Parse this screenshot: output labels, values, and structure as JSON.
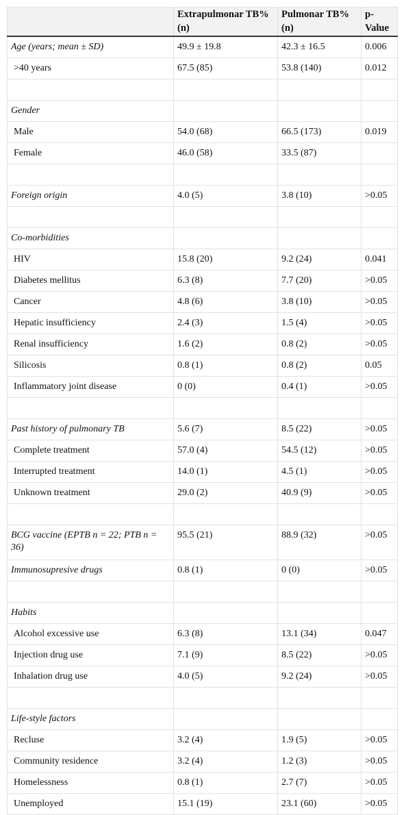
{
  "table": {
    "header": [
      "",
      "Extrapulmonar TB% (n)",
      "Pulmonar TB% (n)",
      "p-Value"
    ],
    "groups": [
      [
        {
          "label": "Age (years; mean ± SD)",
          "italic": true,
          "values": [
            "49.9 ± 19.8",
            "42.3 ± 16.5",
            "0.006"
          ]
        },
        {
          "label": ">40 years",
          "values": [
            "67.5 (85)",
            "53.8 (140)",
            "0.012"
          ]
        }
      ],
      [
        {
          "label": "Gender",
          "italic": true
        },
        {
          "label": "Male",
          "values": [
            "54.0 (68)",
            "66.5 (173)",
            "0.019"
          ]
        },
        {
          "label": "Female",
          "values": [
            "46.0 (58)",
            "33.5 (87)",
            null
          ]
        }
      ],
      [
        {
          "label": "Foreign origin",
          "italic": true,
          "values": [
            "4.0 (5)",
            "3.8 (10)",
            ">0.05"
          ]
        }
      ],
      [
        {
          "label": "Co-morbidities",
          "italic": true
        },
        {
          "label": "HIV",
          "values": [
            "15.8 (20)",
            "9.2 (24)",
            "0.041"
          ]
        },
        {
          "label": "Diabetes mellitus",
          "values": [
            "6.3 (8)",
            "7.7 (20)",
            ">0.05"
          ]
        },
        {
          "label": "Cancer",
          "values": [
            "4.8 (6)",
            "3.8 (10)",
            ">0.05"
          ]
        },
        {
          "label": "Hepatic insufficiency",
          "values": [
            "2.4 (3)",
            "1.5 (4)",
            ">0.05"
          ]
        },
        {
          "label": "Renal insufficiency",
          "values": [
            "1.6 (2)",
            "0.8 (2)",
            ">0.05"
          ]
        },
        {
          "label": "Silicosis",
          "values": [
            "0.8 (1)",
            "0.8 (2)",
            "0.05"
          ]
        },
        {
          "label": "Inflammatory joint disease",
          "values": [
            "0 (0)",
            "0.4 (1)",
            ">0.05"
          ]
        }
      ],
      [
        {
          "label": "Past history of pulmonary TB",
          "italic": true,
          "values": [
            "5.6 (7)",
            "8.5 (22)",
            ">0.05"
          ]
        },
        {
          "label": "Complete treatment",
          "values": [
            "57.0 (4)",
            "54.5 (12)",
            ">0.05"
          ]
        },
        {
          "label": "Interrupted treatment",
          "values": [
            "14.0 (1)",
            "4.5 (1)",
            ">0.05"
          ]
        },
        {
          "label": "Unknown treatment",
          "values": [
            "29.0 (2)",
            "40.9 (9)",
            ">0.05"
          ]
        }
      ],
      [
        {
          "label": "BCG vaccine (EPTB n = 22; PTB n = 36)",
          "italic": true,
          "values": [
            "95.5 (21)",
            "88.9 (32)",
            ">0.05"
          ]
        },
        {
          "label": "Immunosupresive drugs",
          "italic": true,
          "values": [
            "0.8 (1)",
            "0 (0)",
            ">0.05"
          ]
        }
      ],
      [
        {
          "label": "Habits",
          "italic": true
        },
        {
          "label": "Alcohol excessive use",
          "values": [
            "6.3 (8)",
            "13.1 (34)",
            "0.047"
          ]
        },
        {
          "label": "Injection drug use",
          "values": [
            "7.1 (9)",
            "8.5 (22)",
            ">0.05"
          ]
        },
        {
          "label": "Inhalation drug use",
          "values": [
            "4.0 (5)",
            "9.2 (24)",
            ">0.05"
          ]
        }
      ],
      [
        {
          "label": "Life-style factors",
          "italic": true
        },
        {
          "label": "Recluse",
          "values": [
            "3.2 (4)",
            "1.9 (5)",
            ">0.05"
          ]
        },
        {
          "label": "Community residence",
          "values": [
            "3.2 (4)",
            "1.2 (3)",
            ">0.05"
          ]
        },
        {
          "label": "Homelessness",
          "values": [
            "0.8 (1)",
            "2.7 (7)",
            ">0.05"
          ]
        },
        {
          "label": "Unemployed",
          "values": [
            "15.1 (19)",
            "23.1 (60)",
            ">0.05"
          ]
        }
      ]
    ]
  }
}
